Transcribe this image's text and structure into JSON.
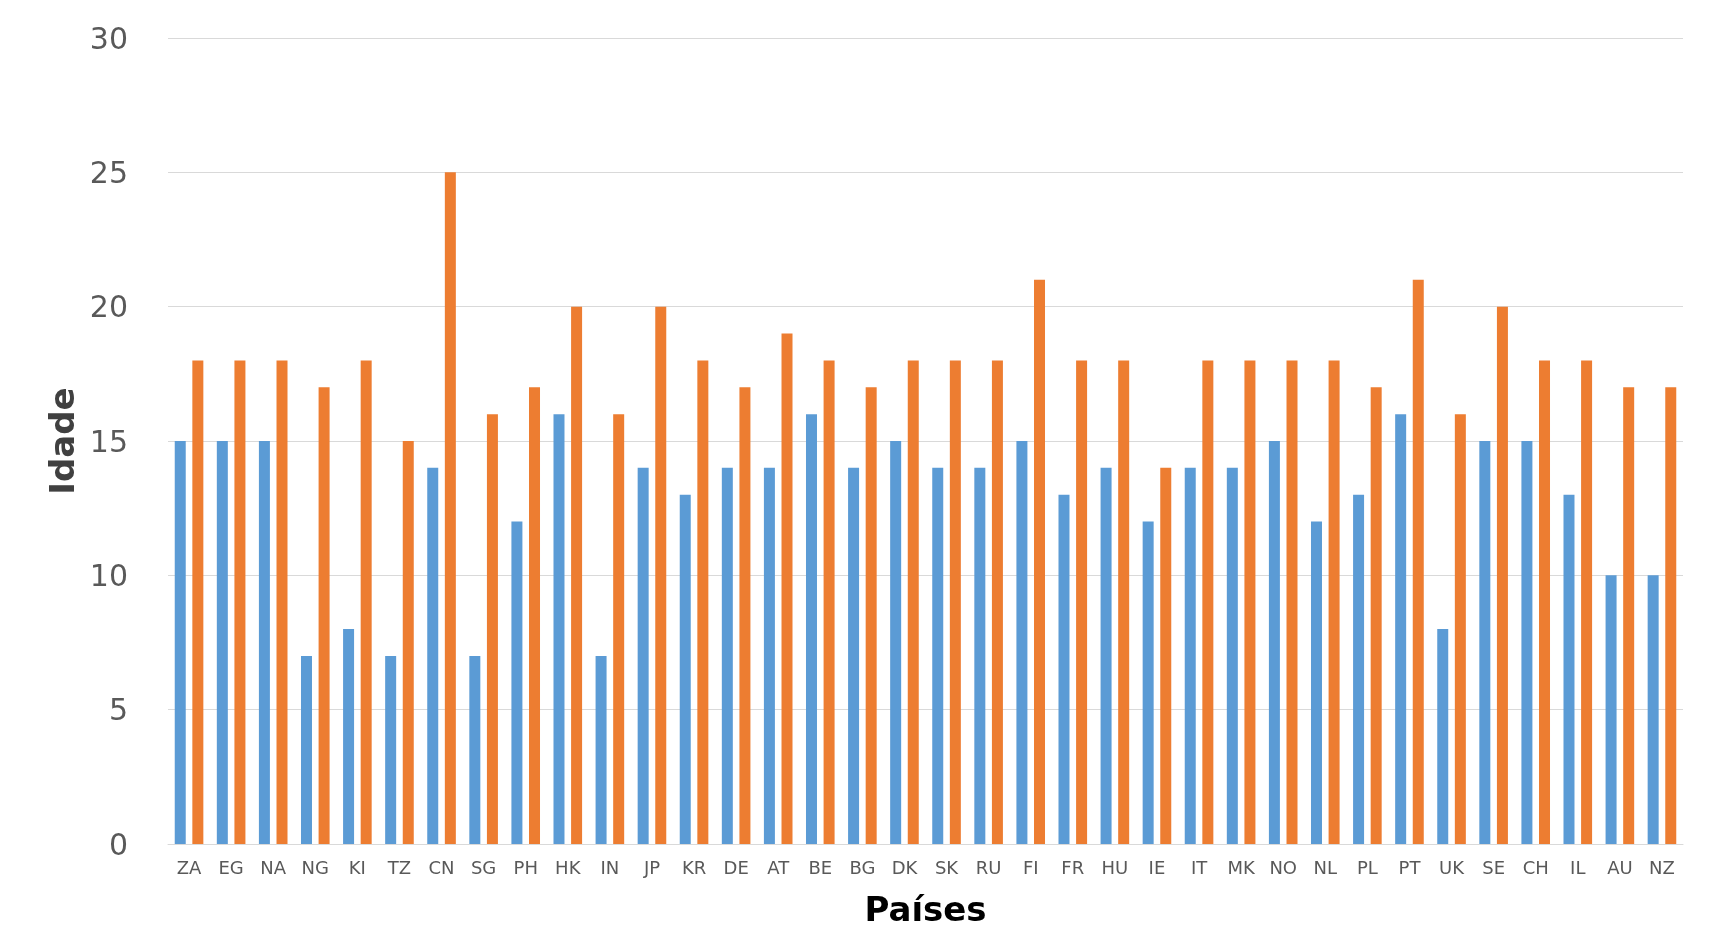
{
  "chart_data": {
    "type": "bar",
    "xlabel": "Países",
    "ylabel": "Idade",
    "categories": [
      "ZA",
      "EG",
      "NA",
      "NG",
      "KI",
      "TZ",
      "CN",
      "SG",
      "PH",
      "HK",
      "IN",
      "JP",
      "KR",
      "DE",
      "AT",
      "BE",
      "BG",
      "DK",
      "SK",
      "RU",
      "FI",
      "FR",
      "HU",
      "IE",
      "IT",
      "MK",
      "NO",
      "NL",
      "PL",
      "PT",
      "UK",
      "SE",
      "CH",
      "IL",
      "AU",
      "NZ"
    ],
    "series": [
      {
        "color": "#5b9bd5",
        "values": [
          15,
          15,
          15,
          7,
          8,
          7,
          14,
          7,
          12,
          16,
          7,
          14,
          13,
          14,
          14,
          16,
          14,
          15,
          14,
          14,
          15,
          13,
          14,
          12,
          14,
          14,
          15,
          12,
          13,
          16,
          8,
          15,
          15,
          13,
          10,
          10
        ]
      },
      {
        "color": "#ed7d31",
        "values": [
          18,
          18,
          18,
          17,
          18,
          15,
          25,
          16,
          17,
          20,
          16,
          20,
          18,
          17,
          19,
          18,
          17,
          18,
          18,
          18,
          21,
          18,
          18,
          14,
          18,
          18,
          18,
          18,
          17,
          21,
          16,
          20,
          18,
          18,
          17,
          17
        ]
      }
    ],
    "ylim": [
      0,
      30
    ],
    "yticks": [
      0,
      5,
      10,
      15,
      20,
      25,
      30
    ],
    "grid": "y"
  }
}
